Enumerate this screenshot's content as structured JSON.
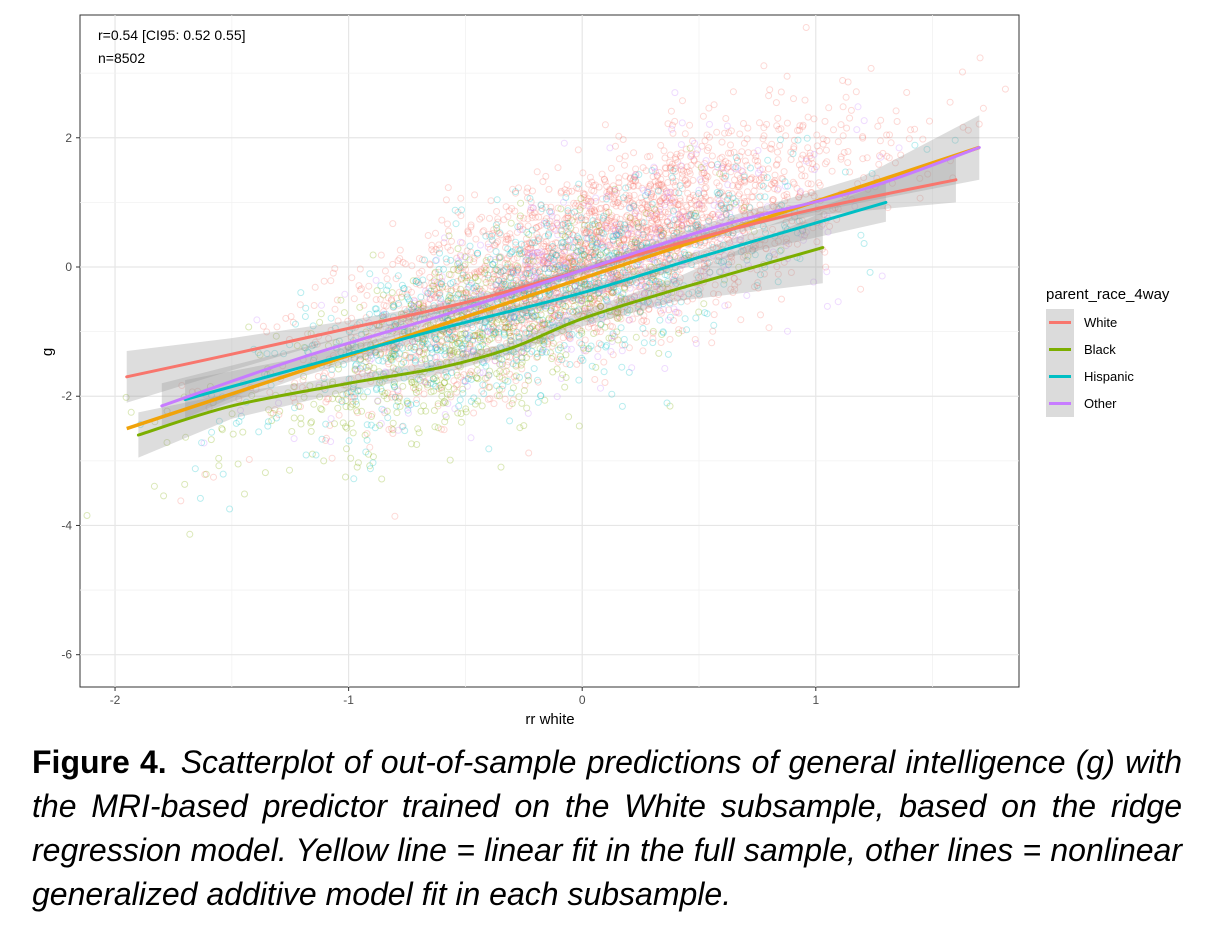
{
  "chart_data": {
    "type": "scatter",
    "xlabel": "rr white",
    "ylabel": "g",
    "xlim": [
      -2.15,
      1.87
    ],
    "ylim": [
      -6.5,
      3.9
    ],
    "x_ticks": [
      -2,
      -1,
      0,
      1
    ],
    "y_ticks": [
      -6,
      -4,
      -2,
      0,
      2
    ],
    "grid": true,
    "annotations": [
      "r=0.54 [CI95: 0.52 0.55]",
      "n=8502"
    ],
    "legend": {
      "title": "parent_race_4way",
      "placement": "right",
      "entries": [
        "White",
        "Black",
        "Hispanic",
        "Other"
      ]
    },
    "series": [
      {
        "name": "White",
        "color": "#F8766D",
        "point_count_shown": 2600,
        "center": [
          0.05,
          0.15
        ],
        "spread": [
          0.55,
          1.0
        ],
        "smooth": [
          [
            -1.95,
            -1.7
          ],
          [
            -1.5,
            -1.35
          ],
          [
            -1.0,
            -0.95
          ],
          [
            -0.5,
            -0.55
          ],
          [
            0.0,
            -0.05
          ],
          [
            0.5,
            0.45
          ],
          [
            1.0,
            0.9
          ],
          [
            1.6,
            1.35
          ]
        ],
        "ribbon_halfwidth": [
          0.4,
          0.25,
          0.12,
          0.06,
          0.05,
          0.06,
          0.1,
          0.35
        ]
      },
      {
        "name": "Black",
        "color": "#7CAE00",
        "point_count_shown": 700,
        "center": [
          -0.45,
          -1.1
        ],
        "spread": [
          0.5,
          0.9
        ],
        "smooth": [
          [
            -1.9,
            -2.6
          ],
          [
            -1.5,
            -2.15
          ],
          [
            -1.0,
            -1.8
          ],
          [
            -0.6,
            -1.55
          ],
          [
            -0.3,
            -1.25
          ],
          [
            0.0,
            -0.8
          ],
          [
            0.4,
            -0.35
          ],
          [
            1.03,
            0.3
          ]
        ],
        "ribbon_halfwidth": [
          0.35,
          0.2,
          0.12,
          0.1,
          0.1,
          0.12,
          0.18,
          0.55
        ]
      },
      {
        "name": "Hispanic",
        "color": "#00BFC4",
        "point_count_shown": 900,
        "center": [
          -0.2,
          -0.5
        ],
        "spread": [
          0.55,
          0.95
        ],
        "smooth": [
          [
            -1.7,
            -2.05
          ],
          [
            -1.2,
            -1.55
          ],
          [
            -0.6,
            -0.95
          ],
          [
            0.0,
            -0.4
          ],
          [
            0.5,
            0.15
          ],
          [
            1.3,
            1.0
          ]
        ],
        "ribbon_halfwidth": [
          0.3,
          0.15,
          0.08,
          0.07,
          0.1,
          0.3
        ]
      },
      {
        "name": "Other",
        "color": "#C77CFF",
        "point_count_shown": 400,
        "center": [
          0.0,
          -0.1
        ],
        "spread": [
          0.55,
          1.0
        ],
        "smooth": [
          [
            -1.8,
            -2.15
          ],
          [
            -1.2,
            -1.4
          ],
          [
            -0.6,
            -0.75
          ],
          [
            0.0,
            -0.05
          ],
          [
            0.6,
            0.65
          ],
          [
            1.2,
            1.2
          ],
          [
            1.7,
            1.85
          ]
        ],
        "ribbon_halfwidth": [
          0.35,
          0.15,
          0.08,
          0.07,
          0.1,
          0.2,
          0.5
        ]
      }
    ],
    "overall_fit": {
      "label": "linear fit in the full sample",
      "color": "#F0A30A",
      "x": [
        -1.95,
        1.7
      ],
      "y": [
        -2.5,
        1.85
      ]
    }
  },
  "caption": {
    "label": "Figure 4.",
    "text": "Scatterplot of out-of-sample predictions of general intelligence (g) with the MRI-based predictor trained on the White subsample, based on the ridge regression model. Yellow line = linear fit in the full sample, other lines = nonlinear generalized additive model fit in each subsample."
  }
}
